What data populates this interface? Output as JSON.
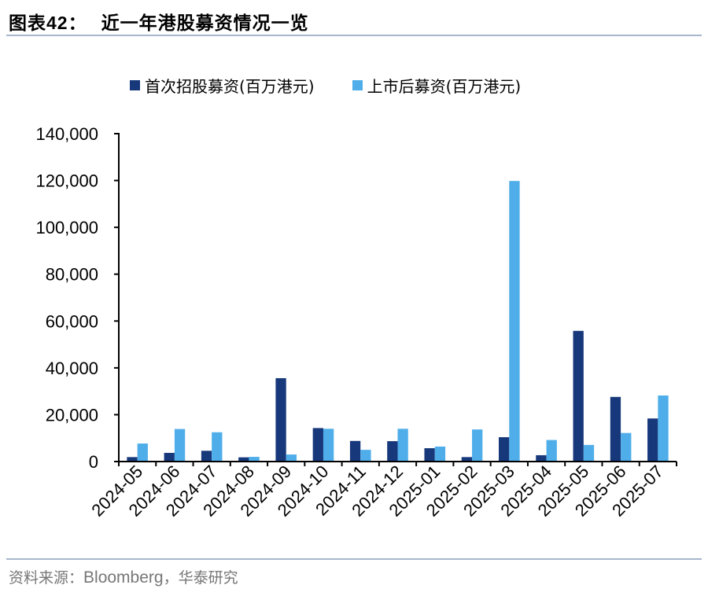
{
  "header": {
    "figure_label": "图表",
    "figure_number": "42：",
    "title": "近一年港股募资情况一览"
  },
  "footer": {
    "source_prefix": "资料来源：",
    "source_en": "Bloomberg",
    "source_suffix": "，华泰研究"
  },
  "colors": {
    "ipo": "#17387a",
    "follow_on": "#4faeea",
    "rule": "#a7b6cc",
    "axis": "#000000"
  },
  "chart_data": {
    "type": "bar",
    "title": "近一年港股募资情况一览",
    "xlabel": "",
    "ylabel": "",
    "categories": [
      "2024-05",
      "2024-06",
      "2024-07",
      "2024-08",
      "2024-09",
      "2024-10",
      "2024-11",
      "2024-12",
      "2025-01",
      "2025-02",
      "2025-03",
      "2025-04",
      "2025-05",
      "2025-06",
      "2025-07"
    ],
    "series": [
      {
        "name": "首次招股募资(百万港元)",
        "color": "#17387a",
        "values": [
          1900,
          3700,
          4600,
          1800,
          35600,
          14300,
          8800,
          8700,
          5700,
          1900,
          10400,
          2700,
          55800,
          27600,
          18400
        ]
      },
      {
        "name": "上市后募资(百万港元)",
        "color": "#4faeea",
        "values": [
          7700,
          13900,
          12500,
          2000,
          3000,
          14000,
          5000,
          14000,
          6400,
          13700,
          119800,
          9200,
          7100,
          12200,
          28200
        ]
      }
    ],
    "ylim": [
      0,
      140000
    ],
    "yticks": [
      0,
      20000,
      40000,
      60000,
      80000,
      100000,
      120000,
      140000
    ],
    "ytick_labels": [
      "0",
      "20,000",
      "40,000",
      "60,000",
      "80,000",
      "100,000",
      "120,000",
      "140,000"
    ],
    "grid": false,
    "legend_position": "top",
    "xtick_rotation": -45
  }
}
